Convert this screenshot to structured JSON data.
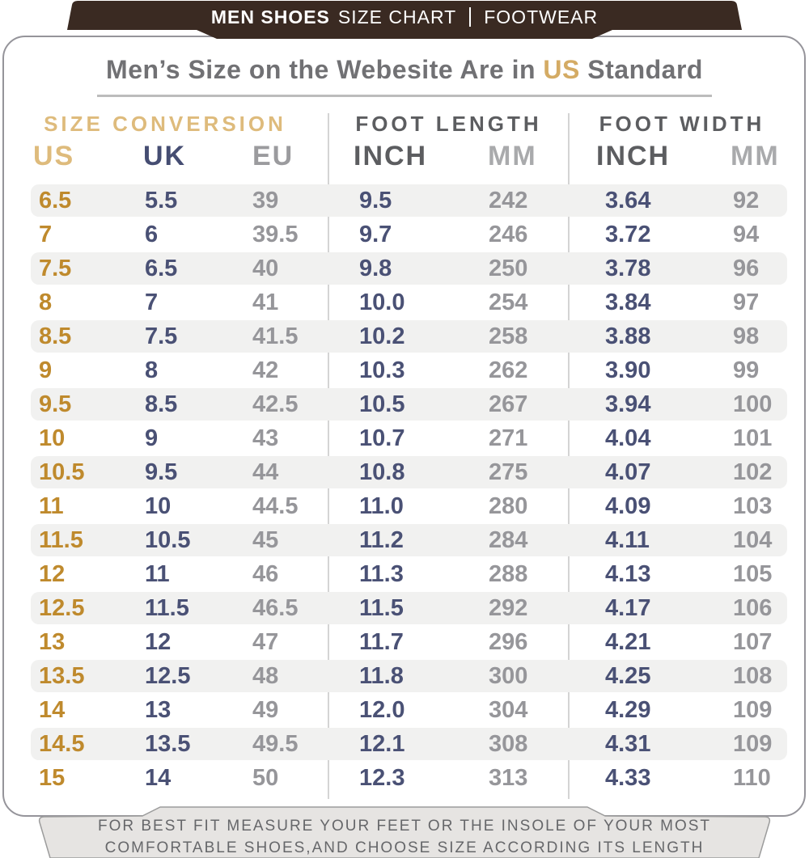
{
  "header_bar": {
    "brand": "MEN SHOES",
    "label": "SIZE CHART",
    "right": "FOOTWEAR"
  },
  "title": {
    "prefix": "Men’s Size on the Webesite Are in ",
    "highlight": "US",
    "suffix": " Standard"
  },
  "table": {
    "sections": [
      {
        "label": "SIZE CONVERSION"
      },
      {
        "label": "FOOT LENGTH"
      },
      {
        "label": "FOOT WIDTH"
      }
    ],
    "columns": [
      "US",
      "UK",
      "EU",
      "INCH",
      "MM",
      "INCH",
      "MM"
    ],
    "column_keys": [
      "us",
      "uk",
      "eu",
      "inch-length",
      "mm-length",
      "inch-width",
      "mm-width"
    ],
    "rows": [
      [
        "6.5",
        "5.5",
        "39",
        "9.5",
        "242",
        "3.64",
        "92"
      ],
      [
        "7",
        "6",
        "39.5",
        "9.7",
        "246",
        "3.72",
        "94"
      ],
      [
        "7.5",
        "6.5",
        "40",
        "9.8",
        "250",
        "3.78",
        "96"
      ],
      [
        "8",
        "7",
        "41",
        "10.0",
        "254",
        "3.84",
        "97"
      ],
      [
        "8.5",
        "7.5",
        "41.5",
        "10.2",
        "258",
        "3.88",
        "98"
      ],
      [
        "9",
        "8",
        "42",
        "10.3",
        "262",
        "3.90",
        "99"
      ],
      [
        "9.5",
        "8.5",
        "42.5",
        "10.5",
        "267",
        "3.94",
        "100"
      ],
      [
        "10",
        "9",
        "43",
        "10.7",
        "271",
        "4.04",
        "101"
      ],
      [
        "10.5",
        "9.5",
        "44",
        "10.8",
        "275",
        "4.07",
        "102"
      ],
      [
        "11",
        "10",
        "44.5",
        "11.0",
        "280",
        "4.09",
        "103"
      ],
      [
        "11.5",
        "10.5",
        "45",
        "11.2",
        "284",
        "4.11",
        "104"
      ],
      [
        "12",
        "11",
        "46",
        "11.3",
        "288",
        "4.13",
        "105"
      ],
      [
        "12.5",
        "11.5",
        "46.5",
        "11.5",
        "292",
        "4.17",
        "106"
      ],
      [
        "13",
        "12",
        "47",
        "11.7",
        "296",
        "4.21",
        "107"
      ],
      [
        "13.5",
        "12.5",
        "48",
        "11.8",
        "300",
        "4.25",
        "108"
      ],
      [
        "14",
        "13",
        "49",
        "12.0",
        "304",
        "4.29",
        "109"
      ],
      [
        "14.5",
        "13.5",
        "49.5",
        "12.1",
        "308",
        "4.31",
        "109"
      ],
      [
        "15",
        "14",
        "50",
        "12.3",
        "313",
        "4.33",
        "110"
      ]
    ]
  },
  "footer": {
    "line1": "FOR BEST FIT MEASURE YOUR FEET OR THE INSOLE OF YOUR MOST",
    "line2": "COMFORTABLE SHOES,AND CHOOSE SIZE ACCORDING ITS LENGTH"
  },
  "colors": {
    "banner_brown": "#3a2a22",
    "accent_gold_light": "#debb7c",
    "accent_gold_dark": "#bf8a2d",
    "navy": "#4a5175",
    "value_gray": "#96969a",
    "footer_bg": "#e6e4e2"
  }
}
